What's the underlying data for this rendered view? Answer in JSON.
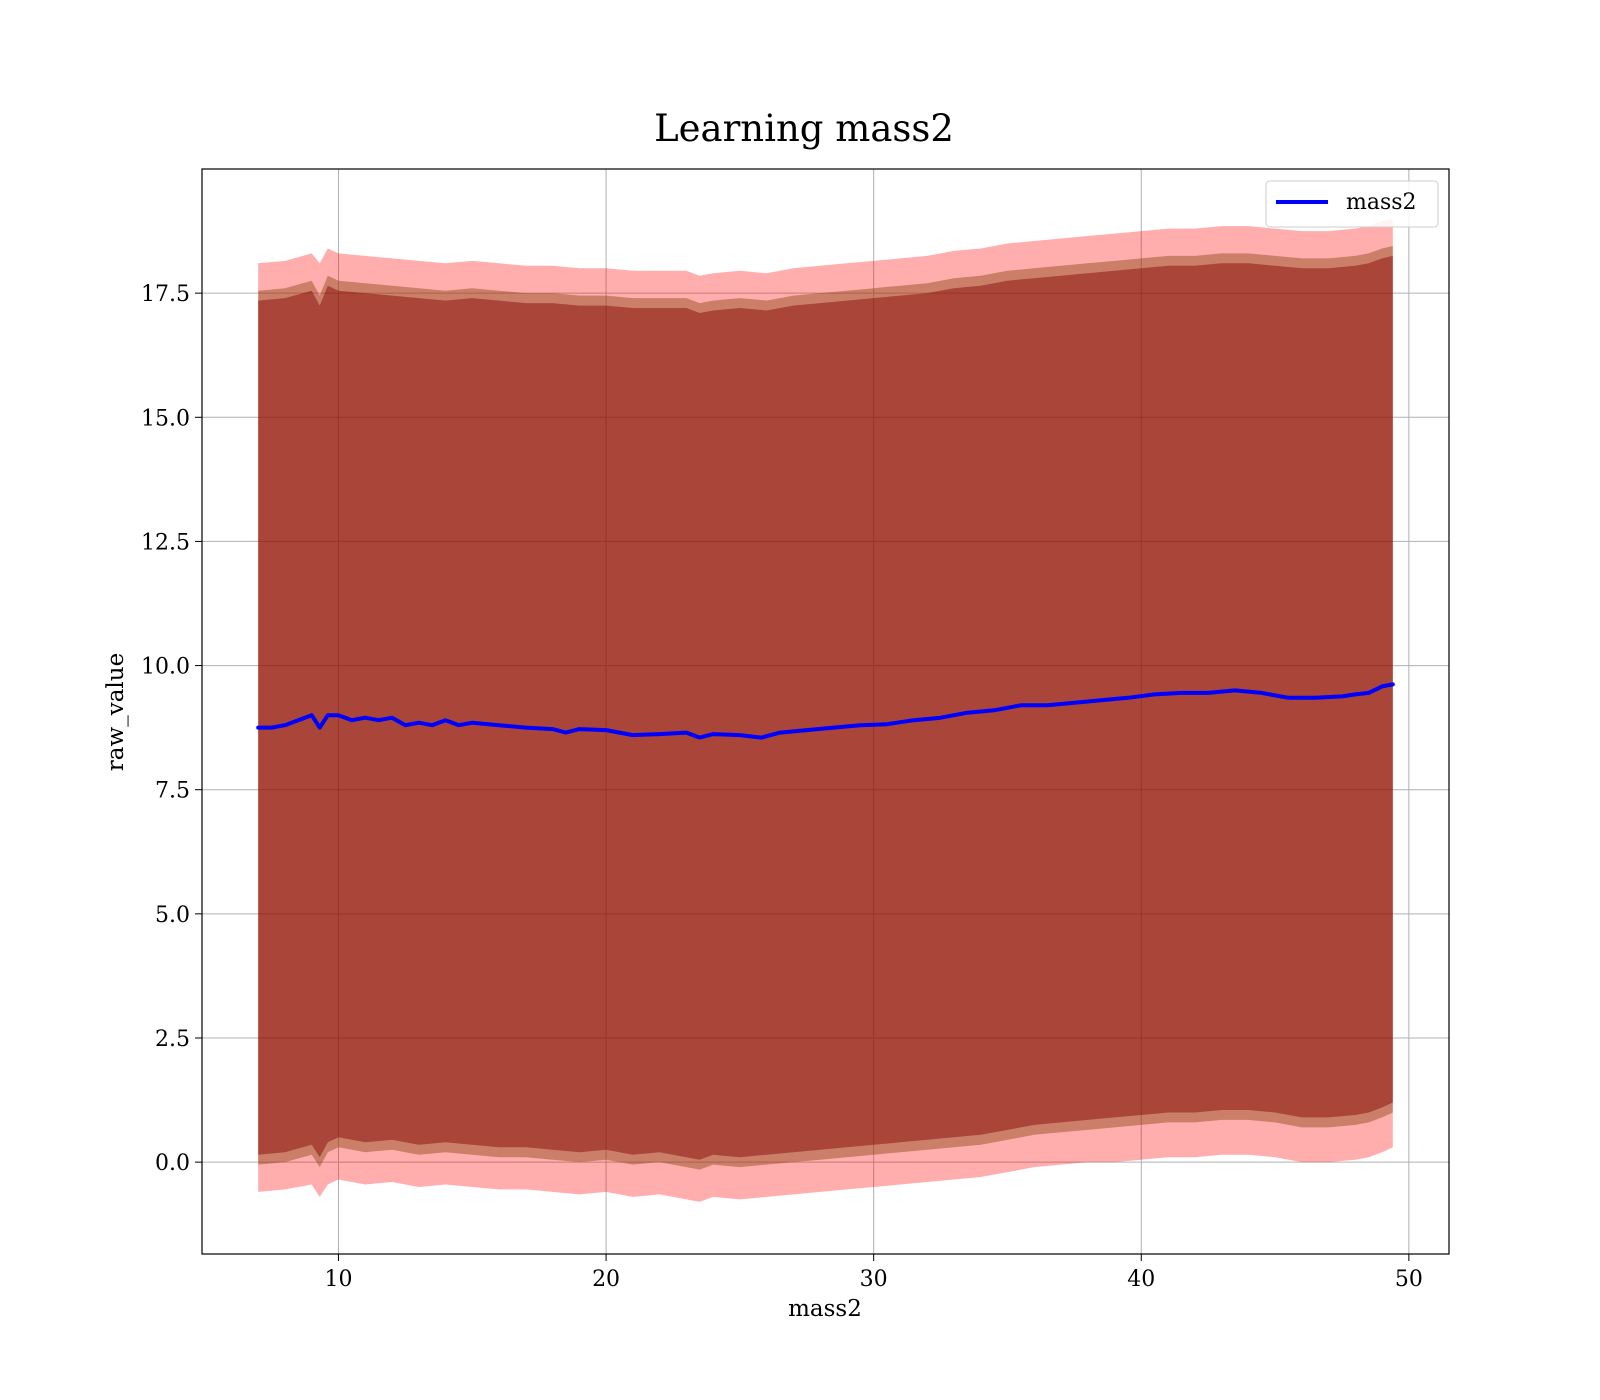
{
  "chart_data": {
    "type": "line",
    "title": "Learning mass2",
    "xlabel": "mass2",
    "ylabel": "raw_value",
    "xlim": [
      4.9,
      51.5
    ],
    "ylim": [
      -1.85,
      20.0
    ],
    "x_ticks": [
      10,
      20,
      30,
      40,
      50
    ],
    "x_tick_labels": [
      "10",
      "20",
      "30",
      "40",
      "50"
    ],
    "y_ticks": [
      0.0,
      2.5,
      5.0,
      7.5,
      10.0,
      12.5,
      15.0,
      17.5
    ],
    "y_tick_labels": [
      "0.0",
      "2.5",
      "5.0",
      "7.5",
      "10.0",
      "12.5",
      "15.0",
      "17.5"
    ],
    "grid": true,
    "legend": {
      "position": "top-right",
      "entries": [
        "mass2"
      ]
    },
    "colors": {
      "line": "#0000ff",
      "outer_band": "#ff0000",
      "middle_band": "#8b4513",
      "inner_band": "#800000"
    },
    "series": [
      {
        "name": "mass2",
        "x": [
          7.0,
          7.5,
          8.0,
          8.5,
          9.0,
          9.3,
          9.6,
          10.0,
          10.5,
          11.0,
          11.5,
          12.0,
          12.5,
          13.0,
          13.5,
          14.0,
          14.5,
          15.0,
          16.0,
          17.0,
          18.0,
          18.5,
          19.0,
          20.0,
          21.0,
          22.0,
          23.0,
          23.5,
          24.0,
          25.0,
          25.8,
          26.5,
          27.5,
          28.5,
          29.5,
          30.5,
          31.5,
          32.5,
          33.5,
          34.5,
          35.5,
          36.5,
          37.5,
          38.5,
          39.5,
          40.5,
          41.5,
          42.5,
          43.5,
          44.5,
          45.5,
          46.5,
          47.5,
          48.0,
          48.5,
          49.0,
          49.4
        ],
        "y": [
          8.75,
          8.75,
          8.8,
          8.9,
          9.0,
          8.75,
          9.0,
          9.0,
          8.9,
          8.95,
          8.9,
          8.95,
          8.8,
          8.85,
          8.8,
          8.9,
          8.8,
          8.85,
          8.8,
          8.75,
          8.72,
          8.65,
          8.72,
          8.7,
          8.6,
          8.62,
          8.65,
          8.55,
          8.62,
          8.6,
          8.55,
          8.65,
          8.7,
          8.75,
          8.8,
          8.82,
          8.9,
          8.95,
          9.05,
          9.1,
          9.2,
          9.2,
          9.25,
          9.3,
          9.35,
          9.42,
          9.45,
          9.45,
          9.5,
          9.45,
          9.35,
          9.35,
          9.38,
          9.42,
          9.45,
          9.58,
          9.62
        ]
      }
    ],
    "bands": [
      {
        "name": "outer",
        "x": [
          7.0,
          8.0,
          9.0,
          9.3,
          9.6,
          10.0,
          11.0,
          12.0,
          13.0,
          14.0,
          15.0,
          16.0,
          17.0,
          18.0,
          19.0,
          20.0,
          21.0,
          22.0,
          23.0,
          23.5,
          24.0,
          25.0,
          26.0,
          27.0,
          28.0,
          29.0,
          30.0,
          31.0,
          32.0,
          33.0,
          34.0,
          35.0,
          36.0,
          37.0,
          38.0,
          39.0,
          40.0,
          41.0,
          42.0,
          43.0,
          44.0,
          45.0,
          46.0,
          47.0,
          48.0,
          48.5,
          49.0,
          49.4
        ],
        "lower": [
          -0.6,
          -0.55,
          -0.45,
          -0.7,
          -0.45,
          -0.35,
          -0.45,
          -0.4,
          -0.5,
          -0.45,
          -0.5,
          -0.55,
          -0.55,
          -0.6,
          -0.65,
          -0.6,
          -0.7,
          -0.65,
          -0.75,
          -0.8,
          -0.7,
          -0.75,
          -0.7,
          -0.65,
          -0.6,
          -0.55,
          -0.5,
          -0.45,
          -0.4,
          -0.35,
          -0.3,
          -0.2,
          -0.1,
          -0.05,
          0.0,
          0.0,
          0.05,
          0.1,
          0.1,
          0.15,
          0.15,
          0.1,
          0.0,
          0.0,
          0.05,
          0.1,
          0.2,
          0.3
        ],
        "upper": [
          18.1,
          18.15,
          18.3,
          18.1,
          18.4,
          18.3,
          18.25,
          18.2,
          18.15,
          18.1,
          18.15,
          18.1,
          18.05,
          18.05,
          18.0,
          18.0,
          17.95,
          17.95,
          17.95,
          17.85,
          17.9,
          17.95,
          17.9,
          18.0,
          18.05,
          18.1,
          18.15,
          18.2,
          18.25,
          18.35,
          18.4,
          18.5,
          18.55,
          18.6,
          18.65,
          18.7,
          18.75,
          18.8,
          18.8,
          18.85,
          18.85,
          18.8,
          18.75,
          18.75,
          18.8,
          18.85,
          18.95,
          19.0
        ]
      },
      {
        "name": "middle",
        "x": [
          7.0,
          8.0,
          9.0,
          9.3,
          9.6,
          10.0,
          11.0,
          12.0,
          13.0,
          14.0,
          15.0,
          16.0,
          17.0,
          18.0,
          19.0,
          20.0,
          21.0,
          22.0,
          23.0,
          23.5,
          24.0,
          25.0,
          26.0,
          27.0,
          28.0,
          29.0,
          30.0,
          31.0,
          32.0,
          33.0,
          34.0,
          35.0,
          36.0,
          37.0,
          38.0,
          39.0,
          40.0,
          41.0,
          42.0,
          43.0,
          44.0,
          45.0,
          46.0,
          47.0,
          48.0,
          48.5,
          49.0,
          49.4
        ],
        "lower": [
          -0.05,
          0.0,
          0.15,
          -0.1,
          0.2,
          0.3,
          0.2,
          0.25,
          0.15,
          0.2,
          0.15,
          0.1,
          0.1,
          0.05,
          0.0,
          0.05,
          -0.05,
          0.0,
          -0.1,
          -0.15,
          -0.05,
          -0.1,
          -0.05,
          0.0,
          0.05,
          0.1,
          0.15,
          0.2,
          0.25,
          0.3,
          0.35,
          0.45,
          0.55,
          0.6,
          0.65,
          0.7,
          0.75,
          0.8,
          0.8,
          0.85,
          0.85,
          0.8,
          0.7,
          0.7,
          0.75,
          0.8,
          0.9,
          1.0
        ],
        "upper": [
          17.55,
          17.6,
          17.75,
          17.45,
          17.85,
          17.75,
          17.7,
          17.65,
          17.6,
          17.55,
          17.6,
          17.55,
          17.5,
          17.5,
          17.45,
          17.45,
          17.4,
          17.4,
          17.4,
          17.3,
          17.35,
          17.4,
          17.35,
          17.45,
          17.5,
          17.55,
          17.6,
          17.65,
          17.7,
          17.8,
          17.85,
          17.95,
          18.0,
          18.05,
          18.1,
          18.15,
          18.2,
          18.25,
          18.25,
          18.3,
          18.3,
          18.25,
          18.2,
          18.2,
          18.25,
          18.3,
          18.4,
          18.45
        ]
      },
      {
        "name": "inner",
        "x": [
          7.0,
          8.0,
          9.0,
          9.3,
          9.6,
          10.0,
          11.0,
          12.0,
          13.0,
          14.0,
          15.0,
          16.0,
          17.0,
          18.0,
          19.0,
          20.0,
          21.0,
          22.0,
          23.0,
          23.5,
          24.0,
          25.0,
          26.0,
          27.0,
          28.0,
          29.0,
          30.0,
          31.0,
          32.0,
          33.0,
          34.0,
          35.0,
          36.0,
          37.0,
          38.0,
          39.0,
          40.0,
          41.0,
          42.0,
          43.0,
          44.0,
          45.0,
          46.0,
          47.0,
          48.0,
          48.5,
          49.0,
          49.4
        ],
        "lower": [
          0.15,
          0.2,
          0.35,
          0.1,
          0.4,
          0.5,
          0.4,
          0.45,
          0.35,
          0.4,
          0.35,
          0.3,
          0.3,
          0.25,
          0.2,
          0.25,
          0.15,
          0.2,
          0.1,
          0.05,
          0.15,
          0.1,
          0.15,
          0.2,
          0.25,
          0.3,
          0.35,
          0.4,
          0.45,
          0.5,
          0.55,
          0.65,
          0.75,
          0.8,
          0.85,
          0.9,
          0.95,
          1.0,
          1.0,
          1.05,
          1.05,
          1.0,
          0.9,
          0.9,
          0.95,
          1.0,
          1.1,
          1.2
        ],
        "upper": [
          17.35,
          17.4,
          17.55,
          17.25,
          17.65,
          17.55,
          17.5,
          17.45,
          17.4,
          17.35,
          17.4,
          17.35,
          17.3,
          17.3,
          17.25,
          17.25,
          17.2,
          17.2,
          17.2,
          17.1,
          17.15,
          17.2,
          17.15,
          17.25,
          17.3,
          17.35,
          17.4,
          17.45,
          17.5,
          17.6,
          17.65,
          17.75,
          17.8,
          17.85,
          17.9,
          17.95,
          18.0,
          18.05,
          18.05,
          18.1,
          18.1,
          18.05,
          18.0,
          18.0,
          18.05,
          18.1,
          18.2,
          18.25
        ]
      }
    ]
  }
}
